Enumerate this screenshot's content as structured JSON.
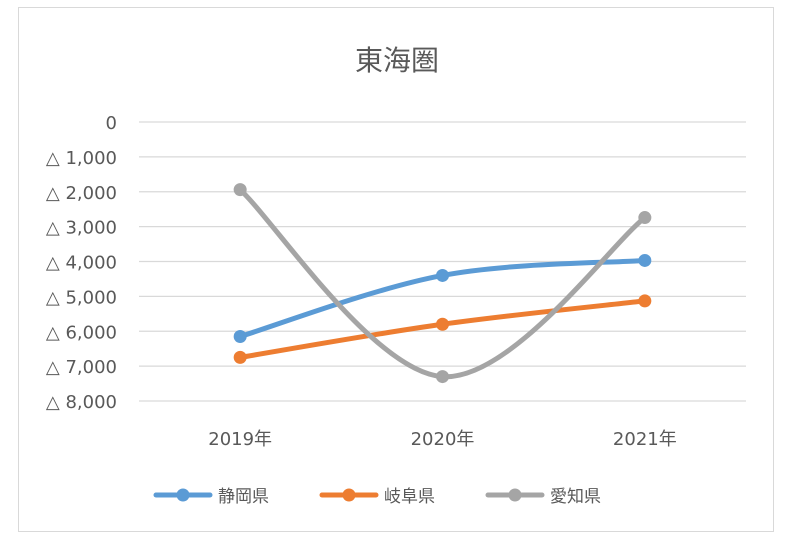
{
  "chart_data": {
    "type": "line",
    "title": "東海圏",
    "xlabel": "",
    "ylabel": "",
    "categories": [
      "2019年",
      "2020年",
      "2021年"
    ],
    "ylim": [
      -8000,
      0
    ],
    "y_ticks": [
      {
        "value": 0,
        "label": "0"
      },
      {
        "value": -1000,
        "label": "△ 1,000"
      },
      {
        "value": -2000,
        "label": "△ 2,000"
      },
      {
        "value": -3000,
        "label": "△ 3,000"
      },
      {
        "value": -4000,
        "label": "△ 4,000"
      },
      {
        "value": -5000,
        "label": "△ 5,000"
      },
      {
        "value": -6000,
        "label": "△ 6,000"
      },
      {
        "value": -7000,
        "label": "△ 7,000"
      },
      {
        "value": -8000,
        "label": "△ 8,000"
      }
    ],
    "grid": true,
    "legend_position": "bottom",
    "series": [
      {
        "name": "静岡県",
        "color": "#5b9bd5",
        "values": [
          -6150,
          -4400,
          -3970
        ]
      },
      {
        "name": "岐阜県",
        "color": "#ed7d31",
        "values": [
          -6750,
          -5800,
          -5130
        ]
      },
      {
        "name": "愛知県",
        "color": "#a5a5a5",
        "values": [
          -1940,
          -7300,
          -2740
        ]
      }
    ]
  }
}
